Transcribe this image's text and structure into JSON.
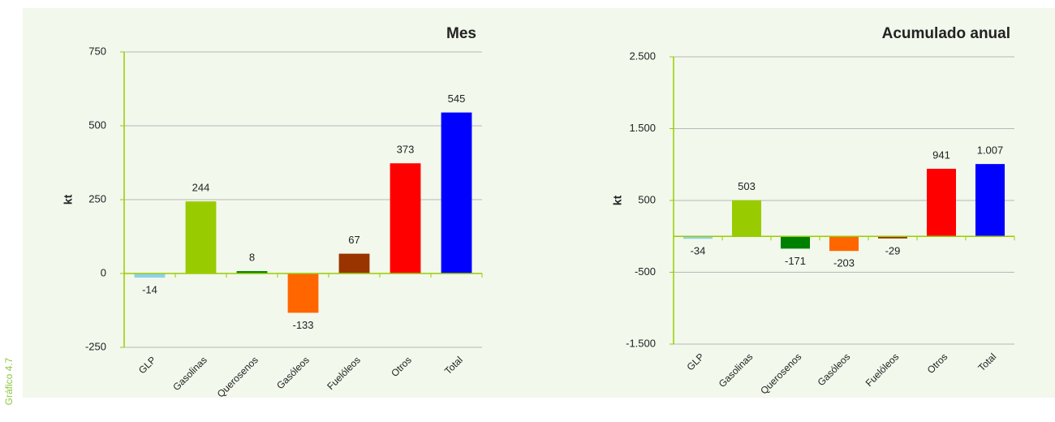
{
  "figure_label": "Gráfico 4.7",
  "chart_data": [
    {
      "type": "bar",
      "title": "Mes",
      "y_label": "kt",
      "categories": [
        "GLP",
        "Gasolinas",
        "Querosenos",
        "Gasóleos",
        "Fuelóleos",
        "Otros",
        "Total"
      ],
      "values": [
        -14,
        244,
        8,
        -133,
        67,
        373,
        545
      ],
      "colors": [
        "#8fd0ec",
        "#99cc00",
        "#008000",
        "#ff6600",
        "#993300",
        "#ff0000",
        "#0000ff"
      ],
      "ylim": [
        -250,
        750
      ],
      "yticks": [
        -250,
        0,
        250,
        500,
        750
      ],
      "grid": true
    },
    {
      "type": "bar",
      "title": "Acumulado anual",
      "y_label": "kt",
      "categories": [
        "GLP",
        "Gasolinas",
        "Querosenos",
        "Gasóleos",
        "Fuelóleos",
        "Otros",
        "Total"
      ],
      "values": [
        -34,
        503,
        -171,
        -203,
        -29,
        941,
        1007
      ],
      "value_labels": [
        "-34",
        "503",
        "-171",
        "-203",
        "-29",
        "941",
        "1.007"
      ],
      "colors": [
        "#8fd0ec",
        "#99cc00",
        "#008000",
        "#ff6600",
        "#993300",
        "#ff0000",
        "#0000ff"
      ],
      "ylim": [
        -1500,
        2500
      ],
      "yticks": [
        {
          "value": -1500,
          "label": "-1.500"
        },
        -500,
        500,
        {
          "value": 1500,
          "label": "1.500"
        },
        {
          "value": 2500,
          "label": "2.500"
        }
      ],
      "grid": true
    }
  ]
}
